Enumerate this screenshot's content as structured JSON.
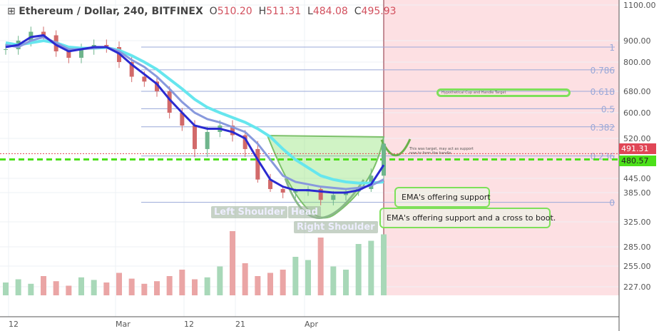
{
  "header": {
    "symbol": "Ethereum / Dollar, 240, BITFINEX",
    "o_label": "O",
    "o": "510.20",
    "h_label": "H",
    "h": "511.31",
    "l_label": "L",
    "l": "484.08",
    "c_label": "C",
    "c": "495.93"
  },
  "chart_data": {
    "type": "candlestick",
    "yticks": [
      1100,
      900,
      800,
      680,
      600,
      520,
      445,
      385,
      325,
      285,
      255,
      227
    ],
    "ytick_labels": [
      "1100.00",
      "900.00",
      "800.00",
      "680.00",
      "600.00",
      "520.00",
      "445.00",
      "385.00",
      "325.00",
      "285.00",
      "255.00",
      "227.00"
    ],
    "xtick_labels": [
      "12",
      "Mar",
      "12",
      "21",
      "Apr"
    ],
    "close": [
      860,
      900,
      950,
      930,
      850,
      820,
      860,
      880,
      870,
      800,
      740,
      720,
      680,
      600,
      560,
      500,
      540,
      560,
      530,
      500,
      440,
      400,
      385,
      390,
      400,
      370,
      380,
      390,
      400,
      450,
      510
    ],
    "ema_fast": [
      870,
      880,
      920,
      930,
      880,
      850,
      860,
      870,
      870,
      840,
      790,
      750,
      710,
      650,
      600,
      560,
      550,
      550,
      540,
      520,
      480,
      440,
      410,
      395,
      395,
      390,
      385,
      385,
      395,
      420,
      470
    ],
    "ema_mid": [
      880,
      870,
      900,
      920,
      890,
      860,
      860,
      865,
      870,
      850,
      810,
      780,
      740,
      690,
      640,
      600,
      580,
      570,
      555,
      540,
      510,
      480,
      450,
      430,
      420,
      410,
      405,
      400,
      405,
      415,
      440
    ],
    "ema_slow": [
      890,
      880,
      890,
      900,
      890,
      870,
      865,
      865,
      868,
      855,
      830,
      800,
      770,
      730,
      690,
      650,
      620,
      600,
      585,
      570,
      550,
      525,
      500,
      480,
      465,
      450,
      440,
      430,
      425,
      425,
      430
    ],
    "volume": [
      20,
      25,
      18,
      30,
      22,
      15,
      28,
      24,
      20,
      35,
      26,
      18,
      22,
      30,
      40,
      25,
      28,
      45,
      100,
      50,
      30,
      35,
      40,
      60,
      55,
      90,
      45,
      40,
      80,
      85,
      95
    ],
    "fib_levels": [
      {
        "label": "1",
        "price": 870
      },
      {
        "label": "0.786",
        "price": 768
      },
      {
        "label": "0.618",
        "price": 680
      },
      {
        "label": "0.5",
        "price": 615
      },
      {
        "label": "0.382",
        "price": 556
      },
      {
        "label": "0.236",
        "price": 487
      },
      {
        "label": "0",
        "price": 365
      }
    ],
    "last_price": "491.31",
    "support_price": "480.57",
    "support_value": 480.57,
    "last_value": 491.31,
    "annotations": {
      "target": "Hypothetical Cup and Handle Target",
      "handle": "This was target, may act as support now to form the handle",
      "ema1": "EMA's offering support",
      "ema2": "EMA's offering support and a cross to boot.",
      "left_shoulder": "Left Shoulder",
      "head": "Head",
      "right_shoulder": "Right Shoulder"
    },
    "colors": {
      "up": "#6fb58c",
      "down": "#d26a6a",
      "ema_fast": "#2a2ad0",
      "ema_mid": "#8899dd",
      "ema_slow": "#66e6ee",
      "future": "#fde0e3",
      "fib": "#9aa8d8",
      "support": "#4ce01a",
      "last": "#e04656"
    }
  }
}
